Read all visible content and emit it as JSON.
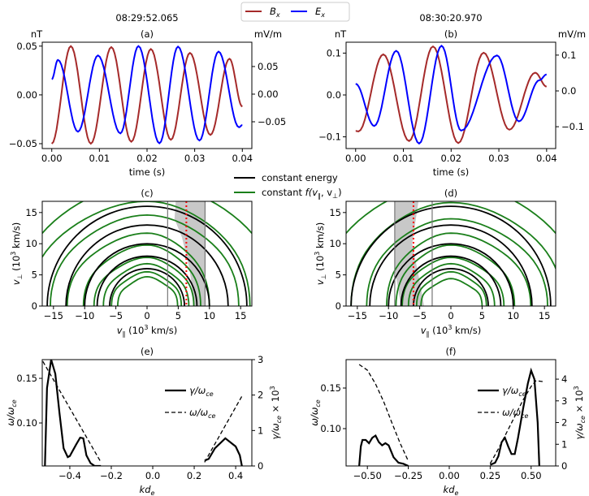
{
  "legend_top": {
    "items": [
      {
        "main": "B",
        "sub": "x",
        "color": "#a52a2a"
      },
      {
        "main": "E",
        "sub": "x",
        "color": "#0000ff"
      }
    ]
  },
  "legend_mid": {
    "energy": "constant energy",
    "f_prefix": "constant ",
    "f_label": "f(v",
    "f_par": "∥",
    "f_mid": ", v",
    "f_perp": "⊥",
    "f_end": ")",
    "energy_color": "#000000",
    "f_color": "#1a7f1a"
  },
  "chart_data": [
    {
      "id": "a",
      "type": "line",
      "title": "(a)",
      "timestamp": "08:29:52.065",
      "xlabel": "time (s)",
      "ylabel_left": "nT",
      "ylabel_right": "mV/m",
      "xlim": [
        -0.002,
        0.042
      ],
      "ylim": [
        -0.055,
        0.054
      ],
      "y2lim": [
        -0.0985,
        0.094
      ],
      "xticks": [
        "0.00",
        "0.01",
        "0.02",
        "0.03",
        "0.04"
      ],
      "yticks": [
        "−0.05",
        "0.00",
        "0.05"
      ],
      "y2ticks": [
        "−0.05",
        "0.00",
        "0.05"
      ],
      "series": [
        {
          "name": "Bx",
          "axis": "left",
          "color": "#a52a2a",
          "extrema": [
            [
              0,
              -0.05
            ],
            [
              0.004,
              0.05
            ],
            [
              0.0082,
              -0.05
            ],
            [
              0.0125,
              0.049
            ],
            [
              0.0167,
              -0.048
            ],
            [
              0.0208,
              0.047
            ],
            [
              0.025,
              -0.046
            ],
            [
              0.029,
              0.043
            ],
            [
              0.0333,
              -0.041
            ],
            [
              0.0373,
              0.037
            ],
            [
              0.04,
              -0.012
            ]
          ]
        },
        {
          "name": "Ex",
          "axis": "right",
          "color": "#0000ff",
          "extrema": [
            [
              0,
              0.027
            ],
            [
              0.0013,
              0.062
            ],
            [
              0.0055,
              -0.068
            ],
            [
              0.0097,
              0.07
            ],
            [
              0.0144,
              -0.071
            ],
            [
              0.0182,
              0.087
            ],
            [
              0.0226,
              -0.089
            ],
            [
              0.0265,
              0.086
            ],
            [
              0.031,
              -0.084
            ],
            [
              0.035,
              0.077
            ],
            [
              0.0393,
              -0.06
            ],
            [
              0.04,
              -0.056
            ]
          ]
        }
      ]
    },
    {
      "id": "b",
      "type": "line",
      "title": "(b)",
      "timestamp": "08:30:20.970",
      "xlabel": "time (s)",
      "ylabel_left": "nT",
      "ylabel_right": "mV/m",
      "xlim": [
        -0.002,
        0.0419
      ],
      "ylim": [
        -0.128,
        0.126
      ],
      "y2lim": [
        -0.161,
        0.136
      ],
      "xticks": [
        "0.00",
        "0.01",
        "0.02",
        "0.03",
        "0.04"
      ],
      "yticks": [
        "−0.1",
        "0.0",
        "0.1"
      ],
      "y2ticks": [
        "−0.1",
        "0.0",
        "0.1"
      ],
      "series": [
        {
          "name": "Bx",
          "axis": "left",
          "color": "#a52a2a",
          "extrema": [
            [
              0,
              -0.086
            ],
            [
              0.0006,
              -0.087
            ],
            [
              0.0058,
              0.097
            ],
            [
              0.0112,
              -0.11
            ],
            [
              0.0162,
              0.116
            ],
            [
              0.0215,
              -0.115
            ],
            [
              0.0268,
              0.101
            ],
            [
              0.0322,
              -0.083
            ],
            [
              0.0376,
              0.053
            ],
            [
              0.04,
              0.02
            ]
          ]
        },
        {
          "name": "Ex",
          "axis": "right",
          "color": "#0000ff",
          "extrema": [
            [
              0,
              0.02
            ],
            [
              0.0039,
              -0.098
            ],
            [
              0.0085,
              0.112
            ],
            [
              0.0133,
              -0.147
            ],
            [
              0.018,
              0.126
            ],
            [
              0.0221,
              -0.111
            ],
            [
              0.0296,
              0.099
            ],
            [
              0.0342,
              -0.085
            ],
            [
              0.0385,
              0.03
            ],
            [
              0.04,
              0.046
            ]
          ]
        }
      ]
    },
    {
      "id": "c",
      "type": "contour",
      "title": "(c)",
      "xlabel_main": "v",
      "xlabel_sub": "∥",
      "xlabel_unit": " (10",
      "xlabel_exp": "3",
      "xlabel_end": " km/s)",
      "ylabel_main": "v",
      "ylabel_sub": "⊥",
      "ylabel_unit": " (10",
      "ylabel_exp": "3",
      "ylabel_end": " km/s)",
      "xlim": [
        -16.8,
        16.8
      ],
      "ylim": [
        0,
        16.8
      ],
      "xticks": [
        "−15",
        "−10",
        "−5",
        "0",
        "5",
        "10",
        "15"
      ],
      "yticks": [
        "0",
        "5",
        "10",
        "15"
      ],
      "constant_energy_radii": [
        6,
        8,
        10,
        13,
        16
      ],
      "constant_f_contours": [
        [
          -4.7,
          4.9,
          4.5
        ],
        [
          -5.7,
          5.5,
          5.3
        ],
        [
          -7,
          6.7,
          6.6
        ],
        [
          -8.5,
          7.5,
          7.6
        ],
        [
          -10.2,
          8.6,
          9.6
        ],
        [
          -12.8,
          10,
          11.5
        ],
        [
          -15.5,
          14.7,
          14.4
        ],
        [
          -19,
          16.5,
          16.6
        ],
        [
          -21,
          21,
          19.5
        ]
      ],
      "resonance_band": [
        3.3,
        9.3
      ],
      "resonance_velocity": 6.3
    },
    {
      "id": "d",
      "type": "contour",
      "title": "(d)",
      "xlabel_main": "v",
      "xlabel_sub": "∥",
      "xlabel_unit": " (10",
      "xlabel_exp": "3",
      "xlabel_end": " km/s)",
      "ylabel_main": "v",
      "ylabel_sub": "⊥",
      "ylabel_unit": " (10",
      "ylabel_exp": "3",
      "ylabel_end": " km/s)",
      "xlim": [
        -16.8,
        16.8
      ],
      "ylim": [
        0,
        16.8
      ],
      "xticks": [
        "−15",
        "−10",
        "−5",
        "0",
        "5",
        "10",
        "15"
      ],
      "yticks": [
        "0",
        "5",
        "10",
        "15"
      ],
      "constant_energy_radii": [
        6,
        8,
        10,
        13,
        16
      ],
      "constant_f_contours": [
        [
          -4.8,
          5,
          4.2
        ],
        [
          -5.5,
          5.7,
          5.3
        ],
        [
          -6.8,
          7,
          6.6
        ],
        [
          -7.8,
          8.5,
          7.6
        ],
        [
          -8.8,
          10.2,
          9.6
        ],
        [
          -10.3,
          12.8,
          11.5
        ],
        [
          -13.5,
          15.5,
          13.8
        ],
        [
          -16,
          18,
          16.4
        ],
        [
          -21,
          21,
          19.5
        ]
      ],
      "resonance_band": [
        -9,
        -3
      ],
      "resonance_velocity": -6
    },
    {
      "id": "e",
      "type": "line",
      "title": "(e)",
      "xlabel_main": "kd",
      "xlabel_sub": "e",
      "ylabel_main": "ω/ω",
      "ylabel_sub": "ce",
      "y2label_main": "γ/ω",
      "y2label_sub": "ce",
      "y2label_mid": " × 10",
      "y2label_exp": "3",
      "legend": [
        {
          "main": "γ/ω",
          "sub": "ce",
          "style": "solid"
        },
        {
          "main": "ω/ω",
          "sub": "ce",
          "style": "dashed"
        }
      ],
      "xlim": [
        -0.533,
        0.478
      ],
      "ylim": [
        0.0518,
        0.171
      ],
      "y2lim": [
        0,
        3.0
      ],
      "xticks": [
        "−0.4",
        "−0.2",
        "0.0",
        "0.2",
        "0.4"
      ],
      "yticks": [
        "0.10",
        "0.15"
      ],
      "y2ticks": [
        "0",
        "1",
        "2",
        "3"
      ],
      "gamma": [
        [
          [
            -0.52,
            0
          ],
          [
            -0.51,
            2.2
          ],
          [
            -0.49,
            3.0
          ],
          [
            -0.47,
            2.6
          ],
          [
            -0.45,
            1.5
          ],
          [
            -0.43,
            0.5
          ],
          [
            -0.41,
            0.25
          ],
          [
            -0.4,
            0.28
          ],
          [
            -0.37,
            0.6
          ],
          [
            -0.35,
            0.8
          ],
          [
            -0.335,
            0.78
          ],
          [
            -0.32,
            0.3
          ],
          [
            -0.3,
            0.08
          ],
          [
            -0.28,
            0.0
          ],
          [
            -0.25,
            0
          ]
        ],
        [
          [
            0.25,
            0.15
          ],
          [
            0.27,
            0.2
          ],
          [
            0.3,
            0.5
          ],
          [
            0.35,
            0.78
          ],
          [
            0.4,
            0.55
          ],
          [
            0.42,
            0.3
          ],
          [
            0.43,
            0
          ]
        ]
      ],
      "omega": [
        [
          [
            -0.53,
            0.169
          ],
          [
            -0.25,
            0.056
          ]
        ],
        [
          [
            0.25,
            0.056
          ],
          [
            0.43,
            0.13
          ]
        ]
      ]
    },
    {
      "id": "f",
      "type": "line",
      "title": "(f)",
      "xlabel_main": "kd",
      "xlabel_sub": "e",
      "ylabel_main": "ω/ω",
      "ylabel_sub": "ce",
      "y2label_main": "γ/ω",
      "y2label_sub": "ce",
      "y2label_mid": " × 10",
      "y2label_exp": "3",
      "legend": [
        {
          "main": "γ/ω",
          "sub": "ce",
          "style": "solid"
        },
        {
          "main": "ω/ω",
          "sub": "ce",
          "style": "dashed"
        }
      ],
      "xlim": [
        -0.63,
        0.65
      ],
      "ylim": [
        0.054,
        0.185
      ],
      "y2lim": [
        0,
        4.9
      ],
      "xticks": [
        "−0.50",
        "−0.25",
        "0.00",
        "0.25",
        "0.50"
      ],
      "yticks": [
        "0.10",
        "0.15"
      ],
      "y2ticks": [
        "0",
        "1",
        "2",
        "3",
        "4"
      ],
      "gamma": [
        [
          [
            -0.55,
            0
          ],
          [
            -0.54,
            0.9
          ],
          [
            -0.53,
            1.2
          ],
          [
            -0.51,
            1.2
          ],
          [
            -0.49,
            1.05
          ],
          [
            -0.47,
            1.3
          ],
          [
            -0.45,
            1.4
          ],
          [
            -0.43,
            1.1
          ],
          [
            -0.41,
            0.95
          ],
          [
            -0.39,
            1.05
          ],
          [
            -0.37,
            0.95
          ],
          [
            -0.34,
            0.4
          ],
          [
            -0.31,
            0.15
          ],
          [
            -0.28,
            0.1
          ],
          [
            -0.25,
            0
          ]
        ],
        [
          [
            0.25,
            0.05
          ],
          [
            0.28,
            0.15
          ],
          [
            0.3,
            0.45
          ],
          [
            0.32,
            1.1
          ],
          [
            0.34,
            1.3
          ],
          [
            0.36,
            0.9
          ],
          [
            0.38,
            0.55
          ],
          [
            0.4,
            0.55
          ],
          [
            0.42,
            1.3
          ],
          [
            0.45,
            2.6
          ],
          [
            0.48,
            3.8
          ],
          [
            0.5,
            4.4
          ],
          [
            0.52,
            4.0
          ],
          [
            0.54,
            2.0
          ],
          [
            0.55,
            0
          ]
        ]
      ],
      "omega": [
        [
          [
            -0.55,
            0.179
          ],
          [
            -0.5,
            0.172
          ],
          [
            -0.45,
            0.155
          ],
          [
            -0.4,
            0.133
          ],
          [
            -0.35,
            0.107
          ],
          [
            -0.3,
            0.082
          ],
          [
            -0.25,
            0.06
          ]
        ],
        [
          [
            0.25,
            0.057
          ],
          [
            0.3,
            0.075
          ],
          [
            0.35,
            0.095
          ],
          [
            0.4,
            0.115
          ],
          [
            0.45,
            0.135
          ],
          [
            0.5,
            0.152
          ],
          [
            0.53,
            0.159
          ],
          [
            0.57,
            0.158
          ]
        ]
      ]
    }
  ]
}
